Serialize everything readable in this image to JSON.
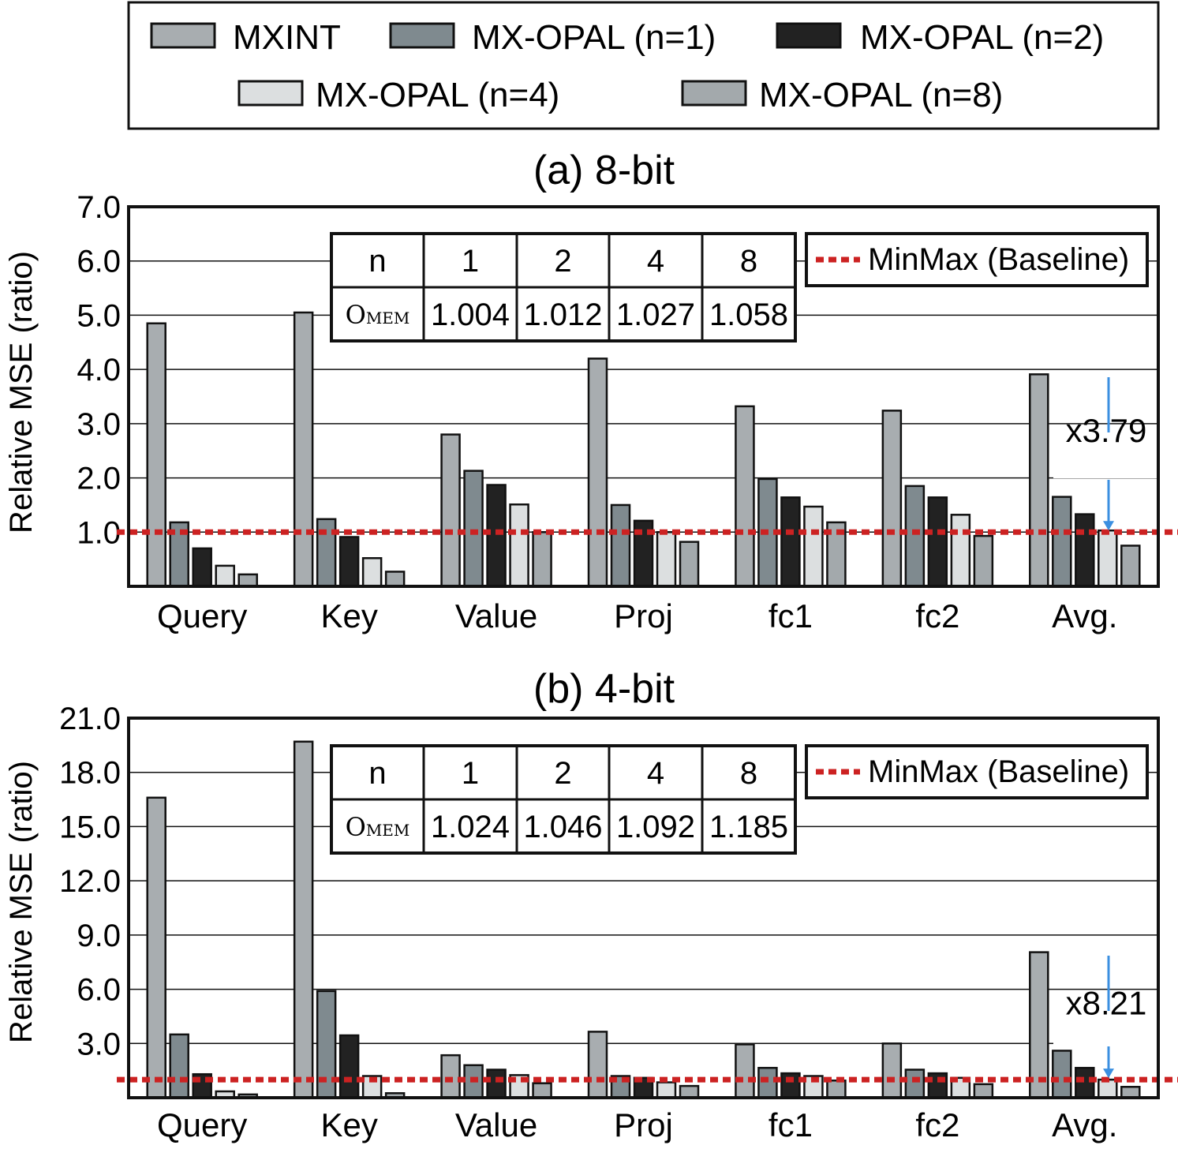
{
  "colors": {
    "series": [
      "#a8adb0",
      "#7f8a8f",
      "#222222",
      "#dcdfe0",
      "#a3a9ac"
    ],
    "baseline": "#cc2222",
    "arrow": "#3b8fe0",
    "frame": "#111111"
  },
  "legend": {
    "items": [
      "MXINT",
      "MX-OPAL (n=1)",
      "MX-OPAL (n=2)",
      "MX-OPAL (n=4)",
      "MX-OPAL (n=8)"
    ]
  },
  "chart_data": [
    {
      "type": "bar",
      "title": "(a) 8-bit",
      "ylabel": "Relative MSE (ratio)",
      "xlabel": "",
      "ylim": [
        0,
        7
      ],
      "yticks": [
        "1.0",
        "2.0",
        "3.0",
        "4.0",
        "5.0",
        "6.0",
        "7.0"
      ],
      "categories": [
        "Query",
        "Key",
        "Value",
        "Proj",
        "fc1",
        "fc2",
        "Avg."
      ],
      "series": [
        {
          "name": "MXINT",
          "values": [
            4.85,
            5.05,
            2.8,
            4.2,
            3.32,
            3.24,
            3.91
          ]
        },
        {
          "name": "MX-OPAL (n=1)",
          "values": [
            1.18,
            1.24,
            2.13,
            1.5,
            1.98,
            1.85,
            1.65
          ]
        },
        {
          "name": "MX-OPAL (n=2)",
          "values": [
            0.7,
            0.91,
            1.87,
            1.21,
            1.64,
            1.64,
            1.33
          ]
        },
        {
          "name": "MX-OPAL (n=4)",
          "values": [
            0.38,
            0.52,
            1.51,
            1.0,
            1.47,
            1.32,
            1.03
          ]
        },
        {
          "name": "MX-OPAL (n=8)",
          "values": [
            0.22,
            0.27,
            1.0,
            0.82,
            1.18,
            0.93,
            0.75
          ]
        }
      ],
      "baseline": {
        "label": "MinMax (Baseline)",
        "value": 1.0
      },
      "annotation": {
        "text": "x3.79",
        "category": "Avg.",
        "from": 3.79,
        "to": 1.0
      },
      "table": {
        "header": [
          "n",
          "1",
          "2",
          "4",
          "8"
        ],
        "row_label_main": "O",
        "row_label_sub": "MEM",
        "row": [
          "1.004",
          "1.012",
          "1.027",
          "1.058"
        ]
      }
    },
    {
      "type": "bar",
      "title": "(b) 4-bit",
      "ylabel": "Relative MSE (ratio)",
      "xlabel": "",
      "ylim": [
        0,
        21
      ],
      "yticks": [
        "3.0",
        "6.0",
        "9.0",
        "12.0",
        "15.0",
        "18.0",
        "21.0"
      ],
      "categories": [
        "Query",
        "Key",
        "Value",
        "Proj",
        "fc1",
        "fc2",
        "Avg."
      ],
      "series": [
        {
          "name": "MXINT",
          "values": [
            16.6,
            19.7,
            2.35,
            3.65,
            2.95,
            3.0,
            8.05
          ]
        },
        {
          "name": "MX-OPAL (n=1)",
          "values": [
            3.5,
            5.9,
            1.8,
            1.2,
            1.65,
            1.55,
            2.6
          ]
        },
        {
          "name": "MX-OPAL (n=2)",
          "values": [
            1.3,
            3.45,
            1.55,
            1.1,
            1.35,
            1.35,
            1.65
          ]
        },
        {
          "name": "MX-OPAL (n=4)",
          "values": [
            0.35,
            1.2,
            1.25,
            0.85,
            1.2,
            1.1,
            1.0
          ]
        },
        {
          "name": "MX-OPAL (n=8)",
          "values": [
            0.18,
            0.25,
            0.8,
            0.65,
            0.95,
            0.75,
            0.6
          ]
        }
      ],
      "baseline": {
        "label": "MinMax (Baseline)",
        "value": 1.0
      },
      "annotation": {
        "text": "x8.21",
        "category": "Avg.",
        "from": 8.21,
        "to": 1.0
      },
      "table": {
        "header": [
          "n",
          "1",
          "2",
          "4",
          "8"
        ],
        "row_label_main": "O",
        "row_label_sub": "MEM",
        "row": [
          "1.024",
          "1.046",
          "1.092",
          "1.185"
        ]
      }
    }
  ]
}
